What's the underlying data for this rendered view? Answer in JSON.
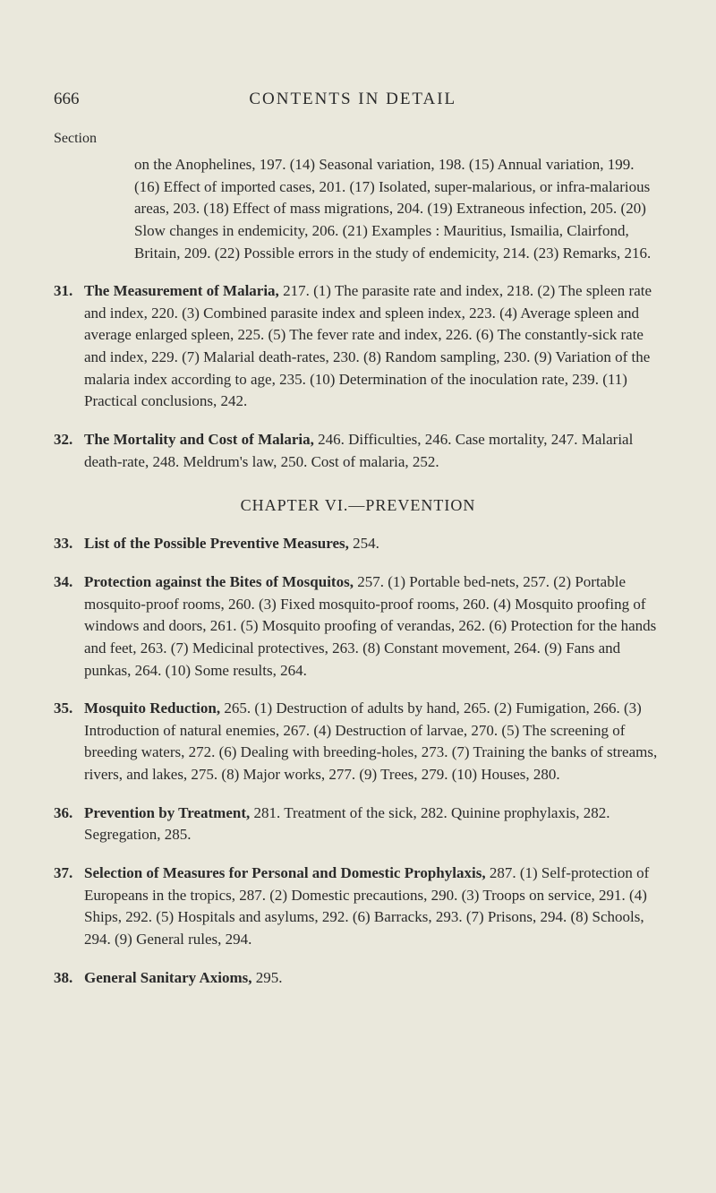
{
  "header": {
    "pageNumber": "666",
    "title": "CONTENTS IN DETAIL"
  },
  "sectionLabel": "Section",
  "entries": [
    {
      "continued": true,
      "text": "on the Anophelines, 197. (14) Seasonal variation, 198. (15) Annual variation, 199. (16) Effect of imported cases, 201. (17) Isolated, super-malarious, or infra-malarious areas, 203. (18) Effect of mass migrations, 204. (19) Extraneous infection, 205. (20) Slow changes in endemicity, 206. (21) Examples : Mauritius, Ismailia, Clairfond, Britain, 209. (22) Possible errors in the study of endemicity, 214. (23) Remarks, 216."
    },
    {
      "num": "31.",
      "title": "The Measurement of Malaria,",
      "text": " 217. (1) The parasite rate and index, 218. (2) The spleen rate and index, 220. (3) Combined parasite index and spleen index, 223. (4) Average spleen and average enlarged spleen, 225. (5) The fever rate and index, 226. (6) The constantly-sick rate and index, 229. (7) Malarial death-rates, 230. (8) Random sampling, 230. (9) Variation of the malaria index according to age, 235. (10) Determination of the inoculation rate, 239. (11) Practical conclusions, 242."
    },
    {
      "num": "32.",
      "title": "The Mortality and Cost of Malaria,",
      "text": " 246. Difficulties, 246. Case mortality, 247. Malarial death-rate, 248. Meldrum's law, 250. Cost of malaria, 252."
    }
  ],
  "chapterHeader": "CHAPTER VI.—PREVENTION",
  "entries2": [
    {
      "num": "33.",
      "title": "List of the Possible Preventive Measures,",
      "text": " 254."
    },
    {
      "num": "34.",
      "title": "Protection against the Bites of Mosquitos,",
      "text": " 257. (1) Portable bed-nets, 257. (2) Portable mosquito-proof rooms, 260. (3) Fixed mosquito-proof rooms, 260. (4) Mosquito proofing of windows and doors, 261. (5) Mosquito proofing of verandas, 262. (6) Protection for the hands and feet, 263. (7) Medicinal protectives, 263. (8) Constant movement, 264. (9) Fans and punkas, 264. (10) Some results, 264."
    },
    {
      "num": "35.",
      "title": "Mosquito Reduction,",
      "text": " 265. (1) Destruction of adults by hand, 265. (2) Fumigation, 266. (3) Introduction of natural enemies, 267. (4) Destruction of larvae, 270. (5) The screening of breeding waters, 272. (6) Dealing with breeding-holes, 273. (7) Training the banks of streams, rivers, and lakes, 275. (8) Major works, 277. (9) Trees, 279. (10) Houses, 280."
    },
    {
      "num": "36.",
      "title": "Prevention by Treatment,",
      "text": " 281. Treatment of the sick, 282. Quinine prophylaxis, 282. Segregation, 285."
    },
    {
      "num": "37.",
      "title": "Selection of Measures for Personal and Domestic Prophylaxis,",
      "text": " 287. (1) Self-protection of Europeans in the tropics, 287. (2) Domestic precautions, 290. (3) Troops on service, 291. (4) Ships, 292. (5) Hospitals and asylums, 292. (6) Barracks, 293. (7) Prisons, 294. (8) Schools, 294. (9) General rules, 294."
    },
    {
      "num": "38.",
      "title": "General Sanitary Axioms,",
      "text": " 295."
    }
  ]
}
